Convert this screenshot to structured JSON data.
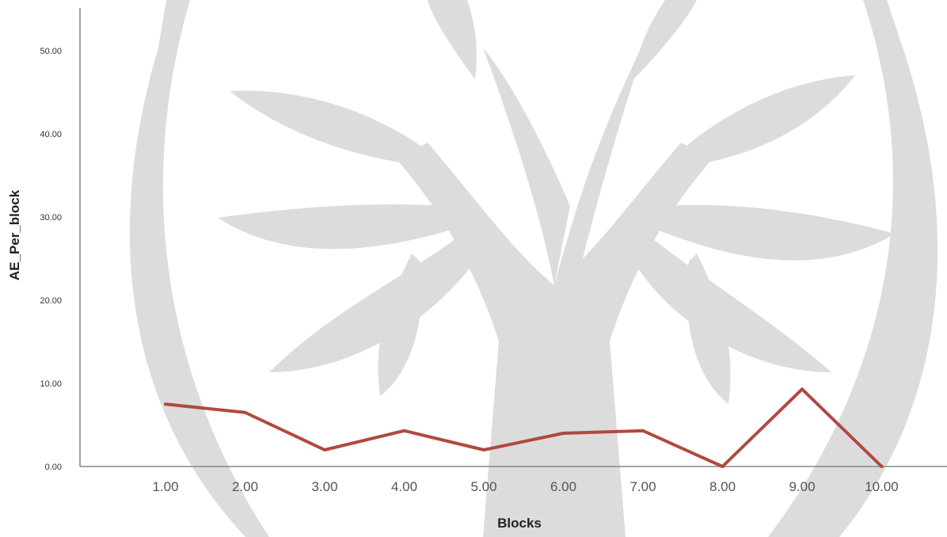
{
  "chart_data": {
    "type": "line",
    "xlabel": "Blocks",
    "ylabel": "AE_Per_block",
    "ylim": [
      0,
      55
    ],
    "yticks": [
      "0.00",
      "10.00",
      "20.00",
      "30.00",
      "40.00",
      "50.00"
    ],
    "categories": [
      "1.00",
      "2.00",
      "3.00",
      "4.00",
      "5.00",
      "6.00",
      "7.00",
      "8.00",
      "9.00",
      "10.00"
    ],
    "series": [
      {
        "values": [
          7.5,
          6.5,
          2.0,
          4.3,
          2.0,
          4.0,
          4.3,
          0.0,
          9.3,
          0.0
        ]
      }
    ],
    "line_color": "#b0493f",
    "grid": false,
    "watermark": "tree-logo-watermark"
  }
}
